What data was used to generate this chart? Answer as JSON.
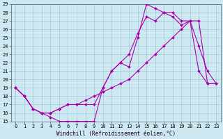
{
  "xlabel": "Windchill (Refroidissement éolien,°C)",
  "background_color": "#cde8f0",
  "grid_color": "#a0c8d8",
  "line_color": "#aa00aa",
  "xlim": [
    -0.5,
    23.5
  ],
  "ylim": [
    15,
    29
  ],
  "xticks": [
    0,
    1,
    2,
    3,
    4,
    5,
    6,
    7,
    8,
    9,
    10,
    11,
    12,
    13,
    14,
    15,
    16,
    17,
    18,
    19,
    20,
    21,
    22,
    23
  ],
  "yticks": [
    15,
    16,
    17,
    18,
    19,
    20,
    21,
    22,
    23,
    24,
    25,
    26,
    27,
    28,
    29
  ],
  "curve1_x": [
    0,
    1,
    2,
    3,
    4,
    5,
    6,
    7,
    8,
    9,
    10,
    11,
    12,
    13,
    14,
    15,
    16,
    17,
    18,
    19,
    20,
    21,
    22,
    23
  ],
  "curve1_y": [
    19,
    18,
    16.5,
    16,
    15.5,
    15,
    15,
    15,
    15,
    15,
    19,
    21,
    22,
    21.5,
    25,
    29,
    28.5,
    28,
    28,
    27,
    27,
    21,
    19.5,
    19.5
  ],
  "curve2_x": [
    0,
    1,
    2,
    3,
    4,
    5,
    6,
    7,
    8,
    9,
    10,
    11,
    12,
    13,
    14,
    15,
    16,
    17,
    18,
    19,
    20,
    21,
    22,
    23
  ],
  "curve2_y": [
    19,
    18,
    16.5,
    16,
    16,
    16.5,
    17,
    17,
    17,
    17,
    19,
    21,
    22,
    23,
    25.5,
    27.5,
    27,
    28,
    27.5,
    26.5,
    27,
    24,
    21,
    19.5
  ],
  "curve3_x": [
    0,
    1,
    2,
    3,
    4,
    5,
    6,
    7,
    8,
    9,
    10,
    11,
    12,
    13,
    14,
    15,
    16,
    17,
    18,
    19,
    20,
    21,
    22,
    23
  ],
  "curve3_y": [
    19,
    18,
    16.5,
    16,
    16,
    16.5,
    17,
    17,
    17.5,
    18,
    18.5,
    19,
    19.5,
    20,
    21,
    22,
    23,
    24,
    25,
    26,
    27,
    27,
    19.5,
    19.5
  ],
  "tick_fontsize": 5,
  "xlabel_fontsize": 5.5,
  "line_width": 0.8,
  "marker_size": 2
}
